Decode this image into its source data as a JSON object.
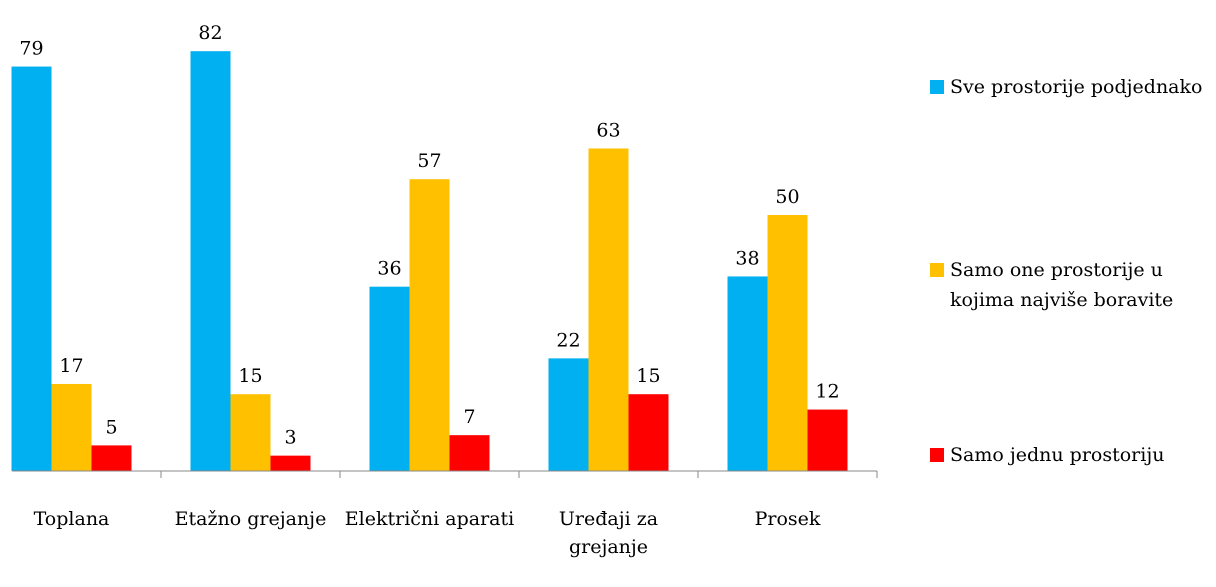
{
  "chart_data": {
    "type": "bar",
    "categories": [
      "Toplana",
      "Etažno grejanje",
      "Električni aparati",
      "Uređaji za grejanje",
      "Prosek"
    ],
    "series": [
      {
        "name": "Sve prostorije podjednako",
        "color": "#00b0f0",
        "values": [
          79,
          82,
          36,
          22,
          38
        ]
      },
      {
        "name": "Samo one prostorije u kojima najviše boravite",
        "color": "#ffc000",
        "values": [
          17,
          15,
          57,
          63,
          50
        ]
      },
      {
        "name": "Samo jednu prostoriju",
        "color": "#ff0000",
        "values": [
          5,
          3,
          7,
          15,
          12
        ]
      }
    ],
    "ylim": [
      0,
      92
    ]
  }
}
